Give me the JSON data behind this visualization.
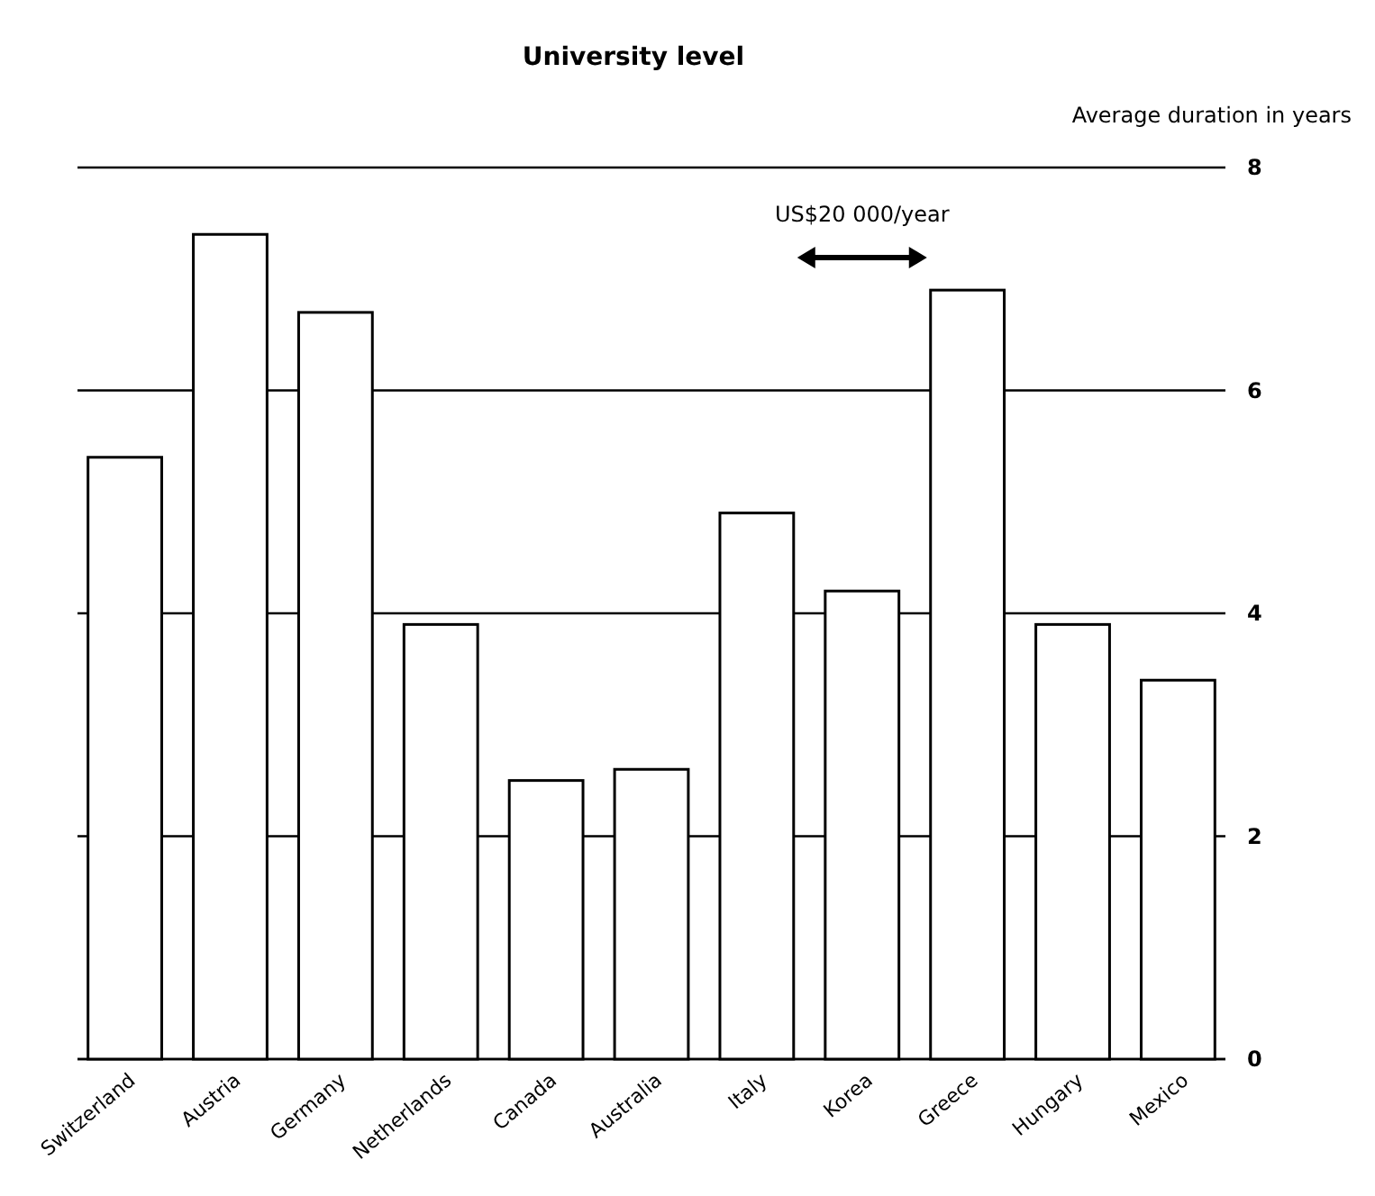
{
  "chart_data": {
    "type": "bar",
    "title": "University level",
    "ylabel": "Average duration in years",
    "categories": [
      "Switzerland",
      "Austria",
      "Germany",
      "Netherlands",
      "Canada",
      "Australia",
      "Italy",
      "Korea",
      "Greece",
      "Hungary",
      "Mexico"
    ],
    "values": [
      5.4,
      7.4,
      6.7,
      3.9,
      2.5,
      2.6,
      4.9,
      4.2,
      6.9,
      3.9,
      3.4
    ],
    "color": "#ffffff",
    "ylim": [
      0,
      8
    ],
    "yticks": [
      0,
      2,
      4,
      6,
      8
    ],
    "grid": "y",
    "annotations": [
      "US$20 000/year"
    ]
  }
}
